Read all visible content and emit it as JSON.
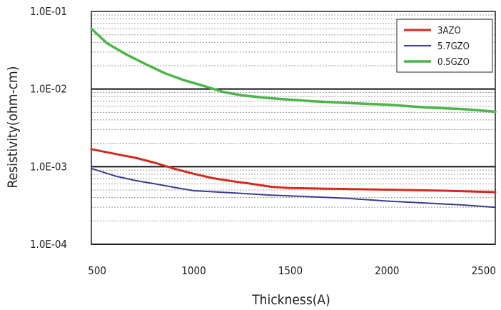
{
  "chart_data": {
    "type": "line",
    "xlabel": "Thickness(A)",
    "ylabel": "Resistivity(ohm-cm)",
    "x_scale": "linear",
    "y_scale": "log",
    "xlim": [
      470,
      2560
    ],
    "ylim": [
      0.0001,
      0.1
    ],
    "x_ticks": [
      500,
      1000,
      1500,
      2000,
      2500
    ],
    "x_tick_labels": [
      "500",
      "1000",
      "1500",
      "2000",
      "2500"
    ],
    "y_ticks": [
      0.1,
      0.01,
      0.001,
      0.0001
    ],
    "y_tick_labels": [
      "1.0E-01",
      "1.0E-02",
      "1.0E-03",
      "1.0E-04"
    ],
    "grid": true,
    "legend_position": "top-right",
    "series": [
      {
        "name": "3AZO",
        "color": "#d62a1e",
        "x": [
          470,
          600,
          700,
          800,
          900,
          1000,
          1100,
          1200,
          1300,
          1400,
          1500,
          1700,
          1900,
          2100,
          2300,
          2560
        ],
        "y": [
          0.00168,
          0.00145,
          0.0013,
          0.00112,
          0.00094,
          0.00081,
          0.00071,
          0.00065,
          0.0006,
          0.00055,
          0.00053,
          0.00052,
          0.00051,
          0.0005,
          0.00049,
          0.00047
        ]
      },
      {
        "name": "5.7GZO",
        "color": "#3c3c94",
        "x": [
          470,
          600,
          700,
          800,
          900,
          1000,
          1200,
          1400,
          1600,
          1800,
          2000,
          2200,
          2400,
          2560
        ],
        "y": [
          0.00095,
          0.00075,
          0.00066,
          0.0006,
          0.00054,
          0.00049,
          0.00046,
          0.00043,
          0.00041,
          0.00039,
          0.00036,
          0.00034,
          0.00032,
          0.0003
        ]
      },
      {
        "name": "0.5GZO",
        "color": "#4cb648",
        "x": [
          470,
          550,
          650,
          750,
          850,
          950,
          1050,
          1150,
          1250,
          1400,
          1600,
          1800,
          2000,
          2200,
          2400,
          2560
        ],
        "y": [
          0.06,
          0.039,
          0.028,
          0.021,
          0.016,
          0.013,
          0.011,
          0.0092,
          0.0083,
          0.0076,
          0.007,
          0.0066,
          0.0063,
          0.0058,
          0.0055,
          0.0051
        ]
      }
    ]
  }
}
